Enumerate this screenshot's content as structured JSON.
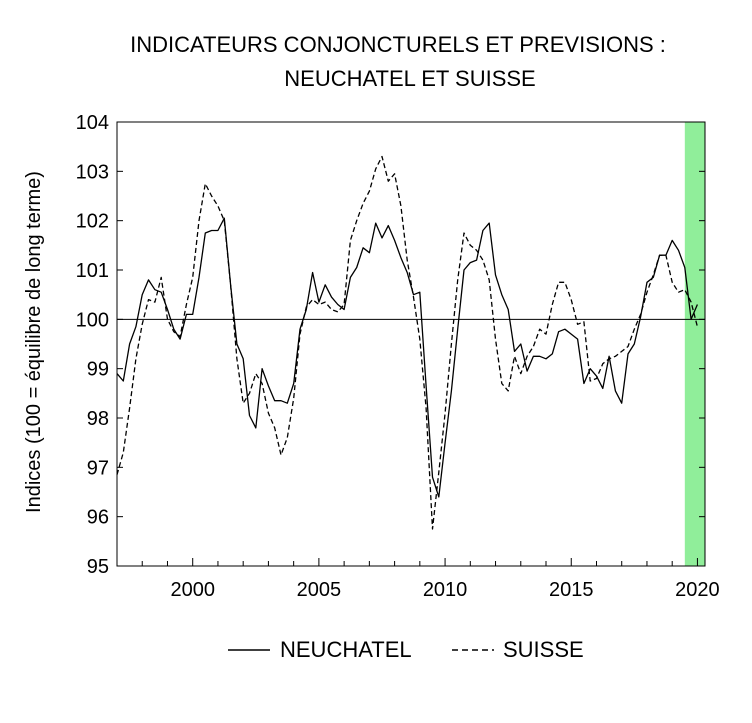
{
  "chart_data": {
    "type": "line",
    "title": [
      "INDICATEURS CONJONCTURELS ET PREVISIONS :",
      "NEUCHATEL ET SUISSE"
    ],
    "xlabel": "",
    "ylabel": "Indices (100 = équilibre de long terme)",
    "xlim": [
      1997.0,
      2020.3
    ],
    "ylim": [
      95,
      104
    ],
    "x_ticks": [
      2000,
      2005,
      2010,
      2015,
      2020
    ],
    "y_ticks": [
      95,
      96,
      97,
      98,
      99,
      100,
      101,
      102,
      103,
      104
    ],
    "grid": false,
    "reference_line": 100,
    "shaded_region": {
      "from": 2019.5,
      "to": 2020.3,
      "color": "#90ee9a",
      "meaning": "prévisions"
    },
    "legend_position": "bottom",
    "series": [
      {
        "name": "NEUCHATEL",
        "style": "solid",
        "x": [
          1997.0,
          1997.25,
          1997.5,
          1997.75,
          1998.0,
          1998.25,
          1998.5,
          1998.75,
          1999.0,
          1999.25,
          1999.5,
          1999.75,
          2000.0,
          2000.25,
          2000.5,
          2000.75,
          2001.0,
          2001.25,
          2001.5,
          2001.75,
          2002.0,
          2002.25,
          2002.5,
          2002.75,
          2003.0,
          2003.25,
          2003.5,
          2003.75,
          2004.0,
          2004.25,
          2004.5,
          2004.75,
          2005.0,
          2005.25,
          2005.5,
          2005.75,
          2006.0,
          2006.25,
          2006.5,
          2006.75,
          2007.0,
          2007.25,
          2007.5,
          2007.75,
          2008.0,
          2008.25,
          2008.5,
          2008.75,
          2009.0,
          2009.25,
          2009.5,
          2009.75,
          2010.0,
          2010.25,
          2010.5,
          2010.75,
          2011.0,
          2011.25,
          2011.5,
          2011.75,
          2012.0,
          2012.25,
          2012.5,
          2012.75,
          2013.0,
          2013.25,
          2013.5,
          2013.75,
          2014.0,
          2014.25,
          2014.5,
          2014.75,
          2015.0,
          2015.25,
          2015.5,
          2015.75,
          2016.0,
          2016.25,
          2016.5,
          2016.75,
          2017.0,
          2017.25,
          2017.5,
          2017.75,
          2018.0,
          2018.25,
          2018.5,
          2018.75,
          2019.0,
          2019.25,
          2019.5,
          2019.75,
          2020.0
        ],
        "values": [
          98.9,
          98.75,
          99.5,
          99.85,
          100.5,
          100.8,
          100.6,
          100.55,
          100.2,
          99.8,
          99.6,
          100.1,
          100.1,
          100.85,
          101.75,
          101.8,
          101.8,
          102.05,
          100.7,
          99.5,
          99.2,
          98.05,
          97.8,
          99.0,
          98.65,
          98.35,
          98.35,
          98.3,
          98.7,
          99.8,
          100.2,
          100.95,
          100.35,
          100.7,
          100.45,
          100.3,
          100.2,
          100.85,
          101.05,
          101.45,
          101.35,
          101.95,
          101.65,
          101.9,
          101.6,
          101.25,
          100.95,
          100.5,
          100.55,
          98.65,
          96.8,
          96.4,
          97.5,
          98.55,
          99.8,
          101.0,
          101.15,
          101.2,
          101.8,
          101.95,
          100.9,
          100.5,
          100.2,
          99.35,
          99.5,
          98.95,
          99.25,
          99.25,
          99.2,
          99.3,
          99.75,
          99.8,
          99.7,
          99.6,
          98.7,
          99.0,
          98.85,
          98.6,
          99.25,
          98.55,
          98.3,
          99.3,
          99.5,
          100.05,
          100.75,
          100.85,
          101.3,
          101.3,
          101.6,
          101.4,
          101.05,
          100.0,
          100.3
        ]
      },
      {
        "name": "SUISSE",
        "style": "dashed",
        "x": [
          1997.0,
          1997.25,
          1997.5,
          1997.75,
          1998.0,
          1998.25,
          1998.5,
          1998.75,
          1999.0,
          1999.25,
          1999.5,
          1999.75,
          2000.0,
          2000.25,
          2000.5,
          2000.75,
          2001.0,
          2001.25,
          2001.5,
          2001.75,
          2002.0,
          2002.25,
          2002.5,
          2002.75,
          2003.0,
          2003.25,
          2003.5,
          2003.75,
          2004.0,
          2004.25,
          2004.5,
          2004.75,
          2005.0,
          2005.25,
          2005.5,
          2005.75,
          2006.0,
          2006.25,
          2006.5,
          2006.75,
          2007.0,
          2007.25,
          2007.5,
          2007.75,
          2008.0,
          2008.25,
          2008.5,
          2008.75,
          2009.0,
          2009.25,
          2009.5,
          2009.75,
          2010.0,
          2010.25,
          2010.5,
          2010.75,
          2011.0,
          2011.25,
          2011.5,
          2011.75,
          2012.0,
          2012.25,
          2012.5,
          2012.75,
          2013.0,
          2013.25,
          2013.5,
          2013.75,
          2014.0,
          2014.25,
          2014.5,
          2014.75,
          2015.0,
          2015.25,
          2015.5,
          2015.75,
          2016.0,
          2016.25,
          2016.5,
          2016.75,
          2017.0,
          2017.25,
          2017.5,
          2017.75,
          2018.0,
          2018.25,
          2018.5,
          2018.75,
          2019.0,
          2019.25,
          2019.5,
          2019.75,
          2020.0
        ],
        "values": [
          96.85,
          97.3,
          98.2,
          99.2,
          99.9,
          100.4,
          100.35,
          100.85,
          100.0,
          99.75,
          99.65,
          100.3,
          100.85,
          102.0,
          102.75,
          102.5,
          102.3,
          102.0,
          100.7,
          99.2,
          98.3,
          98.5,
          98.9,
          98.7,
          98.1,
          97.8,
          97.25,
          97.6,
          98.4,
          99.7,
          100.25,
          100.4,
          100.3,
          100.35,
          100.2,
          100.15,
          100.3,
          101.6,
          102.0,
          102.35,
          102.6,
          103.05,
          103.3,
          102.8,
          102.95,
          102.3,
          101.2,
          100.45,
          99.6,
          98.2,
          95.75,
          96.9,
          98.1,
          99.5,
          100.8,
          101.75,
          101.5,
          101.4,
          101.2,
          100.8,
          99.6,
          98.7,
          98.55,
          99.25,
          98.9,
          99.25,
          99.45,
          99.8,
          99.7,
          100.3,
          100.75,
          100.75,
          100.4,
          99.9,
          99.95,
          98.75,
          98.8,
          99.1,
          99.2,
          99.25,
          99.35,
          99.45,
          99.8,
          100.1,
          100.55,
          100.9,
          101.3,
          101.3,
          100.75,
          100.55,
          100.6,
          100.35,
          99.85
        ]
      }
    ]
  }
}
